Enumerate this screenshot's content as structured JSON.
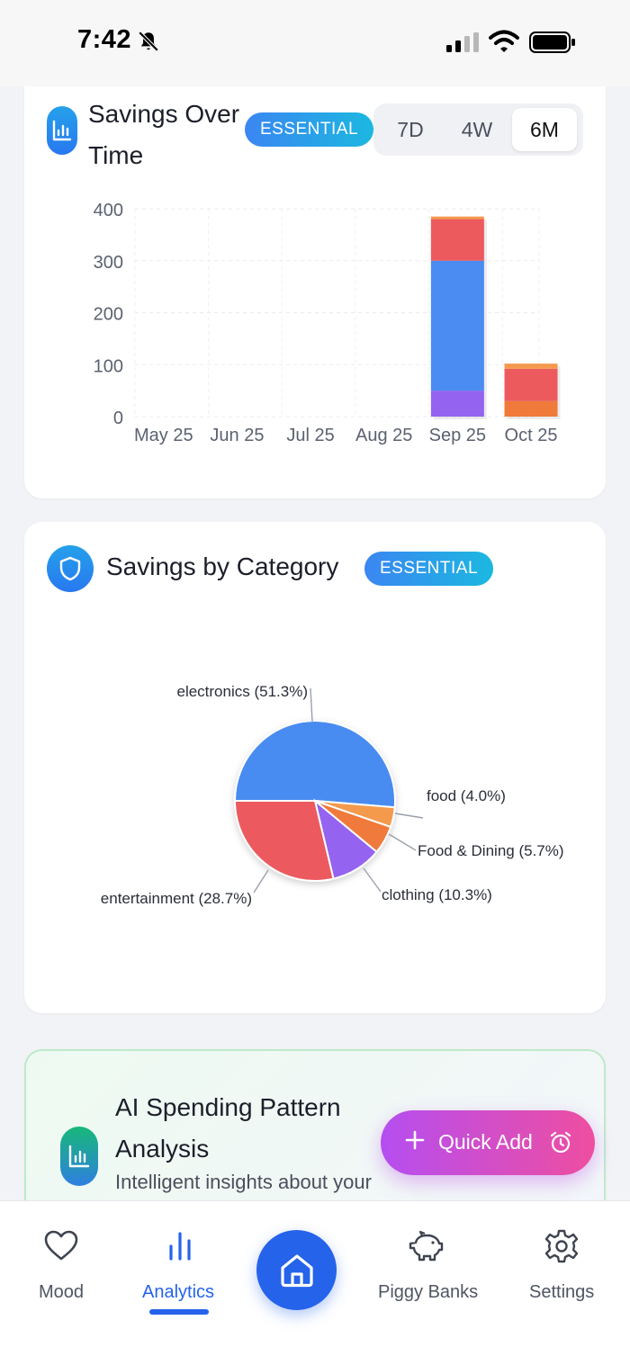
{
  "status_bar": {
    "time": "7:42"
  },
  "savings_over_time": {
    "title": "Savings Over Time",
    "badge": "ESSENTIAL",
    "ranges": [
      "7D",
      "4W",
      "6M"
    ],
    "active_range": "6M"
  },
  "savings_by_category": {
    "title": "Savings by Category",
    "badge": "ESSENTIAL"
  },
  "ai_card": {
    "title": "AI Spending Pattern Analysis",
    "subtitle": "Intelligent insights about your"
  },
  "quick_add": {
    "label": "Quick Add"
  },
  "tabs": [
    {
      "label": "Mood",
      "icon": "heart-icon"
    },
    {
      "label": "Analytics",
      "icon": "bar-chart-icon",
      "active": true
    },
    {
      "label": "Home",
      "icon": "home-icon"
    },
    {
      "label": "Piggy Banks",
      "icon": "piggy-bank-icon"
    },
    {
      "label": "Settings",
      "icon": "gear-icon"
    }
  ],
  "colors": {
    "accent": "#2563eb",
    "electronics": "#4a8cf1",
    "entertainment": "#ec5a5e",
    "clothing": "#9464f0",
    "food_dining": "#f07a3a",
    "food": "#f49a4d"
  },
  "chart_data": [
    {
      "type": "bar",
      "stacked": true,
      "categories": [
        "May 25",
        "Jun 25",
        "Jul 25",
        "Aug 25",
        "Sep 25",
        "Oct 25"
      ],
      "ylim": [
        0,
        400
      ],
      "yticks": [
        0,
        100,
        200,
        300,
        400
      ],
      "grid": true,
      "series": [
        {
          "values": [
            0,
            0,
            0,
            0,
            50,
            0
          ],
          "color": "#9464f0"
        },
        {
          "values": [
            0,
            0,
            0,
            0,
            250,
            0
          ],
          "color": "#4a8cf1"
        },
        {
          "values": [
            0,
            0,
            0,
            0,
            0,
            30
          ],
          "color": "#f07a3a"
        },
        {
          "values": [
            0,
            0,
            0,
            0,
            80,
            62
          ],
          "color": "#ec5a5e"
        },
        {
          "values": [
            0,
            0,
            0,
            0,
            5,
            10
          ],
          "color": "#f49a4d"
        }
      ]
    },
    {
      "type": "pie",
      "slices": [
        {
          "label": "electronics (51.3%)",
          "value": 51.3,
          "color": "#4a8cf1"
        },
        {
          "label": "food (4.0%)",
          "value": 4.0,
          "color": "#f49a4d"
        },
        {
          "label": "Food & Dining (5.7%)",
          "value": 5.7,
          "color": "#f07a3a"
        },
        {
          "label": "clothing (10.3%)",
          "value": 10.3,
          "color": "#9464f0"
        },
        {
          "label": "entertainment (28.7%)",
          "value": 28.7,
          "color": "#ec5a5e"
        }
      ]
    }
  ]
}
